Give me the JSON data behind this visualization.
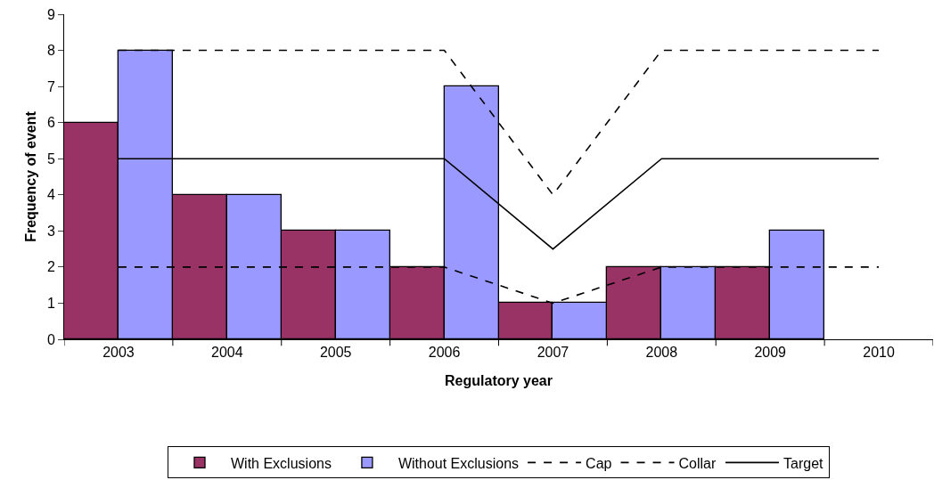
{
  "chart_data": {
    "type": "bar",
    "xlabel": "Regulatory year",
    "ylabel": "Frequency of event",
    "categories": [
      "2003",
      "2004",
      "2005",
      "2006",
      "2007",
      "2008",
      "2009",
      "2010"
    ],
    "series": [
      {
        "name": "With Exclusions",
        "color": "#993366",
        "values": [
          6,
          4,
          3,
          2,
          1,
          2,
          2,
          null
        ]
      },
      {
        "name": "Without Exclusions",
        "color": "#9999ff",
        "values": [
          8,
          4,
          3,
          7,
          1,
          2,
          3,
          null
        ]
      },
      {
        "name": "Cap",
        "type": "line",
        "color": "#000000",
        "line_style": "dashed",
        "values": [
          8,
          8,
          8,
          8,
          4,
          8,
          8,
          8
        ]
      },
      {
        "name": "Collar",
        "type": "line",
        "color": "#000000",
        "line_style": "dashed",
        "values": [
          2,
          2,
          2,
          2,
          1,
          2,
          2,
          2
        ]
      },
      {
        "name": "Target",
        "type": "line",
        "color": "#000000",
        "line_style": "solid",
        "values": [
          5,
          5,
          5,
          5,
          2.5,
          5,
          5,
          5
        ]
      }
    ],
    "ylim": [
      0,
      9
    ],
    "yticks": [
      0,
      1,
      2,
      3,
      4,
      5,
      6,
      7,
      8,
      9
    ],
    "grid": false,
    "legend": "bottom"
  }
}
